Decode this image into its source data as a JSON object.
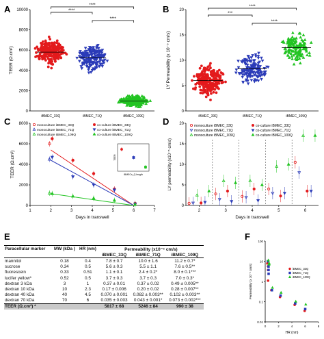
{
  "panel_letters": {
    "A": "A",
    "B": "B",
    "C": "C",
    "D": "D",
    "E": "E",
    "F": "F"
  },
  "colors": {
    "red": "#e31a1c",
    "blue": "#2b3bb8",
    "green": "#22c422",
    "gray": "#888888"
  },
  "chart_data": [
    {
      "panel": "A",
      "type": "scatter",
      "title": "",
      "ylabel": "TEER (Ω.cm²)",
      "xlabel": "",
      "categories": [
        "iBMEC_33Q",
        "iBMEC_71Q",
        "iBMEC_109Q"
      ],
      "ylim": [
        0,
        10000
      ],
      "yticks": [
        "0",
        "2000",
        "4000",
        "6000",
        "8000",
        "10000"
      ],
      "series": [
        {
          "category": "iBMEC_33Q",
          "mean": 5800,
          "sd": 1100,
          "min": 3000,
          "max": 8800,
          "n": 260
        },
        {
          "category": "iBMEC_71Q",
          "mean": 5250,
          "sd": 1100,
          "min": 2800,
          "max": 8800,
          "n": 200
        },
        {
          "category": "iBMEC_109Q",
          "mean": 990,
          "sd": 450,
          "min": 300,
          "max": 3700,
          "n": 260
        }
      ],
      "significance": [
        "****",
        "****",
        "****"
      ]
    },
    {
      "panel": "B",
      "type": "scatter",
      "title": "",
      "ylabel": "LY Permeability (x 10⁻⁵ cm/s)",
      "xlabel": "",
      "categories": [
        "iBMEC_33Q",
        "iBMEC_71Q",
        "iBMEC_109Q"
      ],
      "ylim": [
        0,
        20
      ],
      "yticks": [
        "0",
        "5",
        "10",
        "15",
        "20"
      ],
      "series": [
        {
          "category": "iBMEC_33Q",
          "mean": 6.0,
          "sd": 2.5,
          "min": 0.5,
          "max": 13,
          "n": 240
        },
        {
          "category": "iBMEC_71Q",
          "mean": 8.3,
          "sd": 2.5,
          "min": 3,
          "max": 16,
          "n": 150
        },
        {
          "category": "iBMEC_109Q",
          "mean": 12.5,
          "sd": 2.5,
          "min": 6,
          "max": 18,
          "n": 150
        }
      ],
      "significance": [
        "***",
        "****",
        "****"
      ]
    },
    {
      "panel": "C",
      "type": "line",
      "title": "",
      "ylabel": "TEER (Ω.cm²)",
      "xlabel": "Days in transwell",
      "x": [
        2,
        3,
        4,
        5,
        6
      ],
      "xlim": [
        1,
        7
      ],
      "ylim": [
        0,
        8000
      ],
      "yticks": [
        "0",
        "2000",
        "4000",
        "6000",
        "8000"
      ],
      "xticks": [
        "1",
        "2",
        "3",
        "4",
        "5",
        "6",
        "7"
      ],
      "legend": [
        "monoculture iBMEC_33Q",
        "monoculture iBMEC_71Q",
        "monoculture iBMEC_109Q",
        "co-culture iBMEC_33Q",
        "co-culture iBMEC_71Q",
        "co-culture iBMEC_109Q"
      ],
      "series": [
        {
          "name": "monoculture iBMEC_33Q",
          "values": [
            6000,
            null,
            null,
            null,
            null
          ]
        },
        {
          "name": "monoculture iBMEC_71Q",
          "values": [
            4500,
            null,
            null,
            null,
            null
          ]
        },
        {
          "name": "monoculture iBMEC_109Q",
          "values": [
            1200,
            null,
            null,
            null,
            null
          ]
        },
        {
          "name": "co-culture iBMEC_33Q",
          "values": [
            6500,
            4400,
            3100,
            1600,
            200
          ]
        },
        {
          "name": "co-culture iBMEC_71Q",
          "values": [
            4700,
            2800,
            2000,
            1500,
            150
          ]
        },
        {
          "name": "co-culture iBMEC_109Q",
          "values": [
            1150,
            900,
            700,
            500,
            100
          ]
        }
      ],
      "trend_lines": [
        {
          "name": "co-culture iBMEC_33Q",
          "from": [
            2,
            5400
          ],
          "to": [
            6,
            0
          ]
        },
        {
          "name": "co-culture iBMEC_71Q",
          "from": [
            2,
            4400
          ],
          "to": [
            6,
            0
          ]
        },
        {
          "name": "co-culture iBMEC_109Q",
          "from": [
            2,
            1150
          ],
          "to": [
            6,
            0
          ]
        }
      ],
      "inset": {
        "xlabel": "iBMECs_Q length",
        "ylabel": "TEER",
        "points": [
          {
            "x": 33,
            "y": 1600
          },
          {
            "x": 71,
            "y": 1000
          },
          {
            "x": 109,
            "y": 300
          }
        ]
      }
    },
    {
      "panel": "D",
      "type": "scatter",
      "title": "",
      "ylabel": "LY permeability (x10⁻⁵ cm/s)",
      "xlabel": "Days in transwell",
      "x": [
        2,
        3,
        4,
        5,
        6
      ],
      "ylim": [
        0,
        20
      ],
      "yticks": [
        "0",
        "5",
        "10",
        "15",
        "20"
      ],
      "xticks": [
        "2",
        "3",
        "4",
        "5",
        "6"
      ],
      "legend": [
        "monoculture iBMEC_33Q",
        "monoculture iBMEC_71Q",
        "monoculture iBMEC_109Q",
        "co-culture iBMEC_33Q",
        "co-culture iBMEC_71Q",
        "co-culture iBMEC_109Q"
      ],
      "series": [
        {
          "name": "monoculture iBMEC_33Q",
          "values": [
            0.5,
            2.8,
            2.2,
            4.0,
            10.5
          ]
        },
        {
          "name": "monoculture iBMEC_71Q",
          "values": [
            0.6,
            1.5,
            2.0,
            3.0,
            8.0
          ]
        },
        {
          "name": "monoculture iBMEC_109Q",
          "values": [
            2.5,
            6.0,
            6.0,
            9.5,
            17.0
          ]
        },
        {
          "name": "co-culture iBMEC_33Q",
          "values": [
            0.6,
            3.5,
            4.0,
            2.3,
            3.5
          ]
        },
        {
          "name": "co-culture iBMEC_71Q",
          "values": [
            0.8,
            1.0,
            1.2,
            3.0,
            3.5
          ]
        },
        {
          "name": "co-culture iBMEC_109Q",
          "values": [
            3.5,
            5.5,
            5.0,
            10.0,
            17.0
          ]
        }
      ]
    },
    {
      "panel": "E",
      "type": "table",
      "header": {
        "marker": "Paracellular marker",
        "mw": "MW (kDa )",
        "hr": "HR (nm)",
        "perm": "Permeability (x10⁻⁵ cm/s)",
        "c1": "iBMEC_33Q",
        "c2": "iBMEC_71Q",
        "c3": "iBMEC_109Q"
      },
      "rows": [
        {
          "marker": "mannitol",
          "mw": "0.18",
          "hr": "0.4",
          "v1": "7.8 ± 0.7",
          "v2": "10.0 ± 1.6",
          "v3": "11.2 ± 0.7*"
        },
        {
          "marker": "sucrose",
          "mw": "0.34",
          "hr": "0.5",
          "v1": "5.6 ± 0.3",
          "v2": "5.5 ± 1.1",
          "v3": "7.6 ± 0.5**"
        },
        {
          "marker": "fluorescein",
          "mw": "0.33",
          "hr": "0.51",
          "v1": "1.1 ± 0.1",
          "v2": "2.4 ± 0.2*",
          "v3": "8.0 ± 0.1***"
        },
        {
          "marker": "lucifer yellow*",
          "mw": "0.52",
          "hr": "0.5",
          "v1": "3.7 ± 0.3",
          "v2": "3.7 ± 0.3",
          "v3": "7.0 ± 0.3*"
        },
        {
          "marker": "dextran 3 kDa",
          "mw": "3",
          "hr": "1",
          "v1": "0.37 ± 0.01",
          "v2": "0.37 ± 0.02",
          "v3": "0.49 ± 0.005**"
        },
        {
          "marker": "dextran 10 kDa",
          "mw": "10",
          "hr": "2.3",
          "v1": "0.17 ± 0.006",
          "v2": "0.20 ± 0.02",
          "v3": "0.28 ± 0.007**"
        },
        {
          "marker": "dextran 40 kDa",
          "mw": "40",
          "hr": "4.5",
          "v1": "0.070 ± 0.001",
          "v2": "0.082 ± 0.003**",
          "v3": "0.102 ± 0.003**"
        },
        {
          "marker": "dextran 70 kDa",
          "mw": "70",
          "hr": "6",
          "v1": "0.035 ± 0.003",
          "v2": "0.043 ± 0.001*",
          "v3": "0.073 ± 0.002***"
        }
      ],
      "teer": {
        "label": "TEER (Ω.cm²) *",
        "v1": "5817 ± 68",
        "v2": "5246 ± 84",
        "v3": "990 ± 38"
      }
    },
    {
      "panel": "F",
      "type": "scatter",
      "title": "",
      "ylabel": "Permeability (x 10⁻⁵ cm/s)",
      "xlabel": "HR (nm)",
      "yscale": "log",
      "ylim": [
        0.01,
        100
      ],
      "xlim": [
        0,
        8
      ],
      "yticks": [
        "0.01",
        "0.1",
        "1",
        "10",
        "100"
      ],
      "xticks": [
        "0",
        "2",
        "4",
        "6",
        "8"
      ],
      "legend": [
        "iBMEC_33Q",
        "iBMEC_71Q",
        "iBMEC_109Q"
      ],
      "series": [
        {
          "name": "iBMEC_33Q",
          "x": [
            0.4,
            0.5,
            0.51,
            0.5,
            1,
            2.3,
            4.5,
            6
          ],
          "values": [
            7.8,
            5.6,
            1.1,
            3.7,
            0.37,
            0.17,
            0.07,
            0.035
          ]
        },
        {
          "name": "iBMEC_71Q",
          "x": [
            0.4,
            0.5,
            0.51,
            0.5,
            1,
            2.3,
            4.5,
            6
          ],
          "values": [
            10.0,
            5.5,
            2.4,
            3.7,
            0.37,
            0.2,
            0.082,
            0.043
          ]
        },
        {
          "name": "iBMEC_109Q",
          "x": [
            0.4,
            0.5,
            0.51,
            0.5,
            1,
            2.3,
            4.5,
            6
          ],
          "values": [
            11.2,
            7.6,
            8.0,
            7.0,
            0.49,
            0.28,
            0.102,
            0.073
          ]
        }
      ]
    }
  ]
}
